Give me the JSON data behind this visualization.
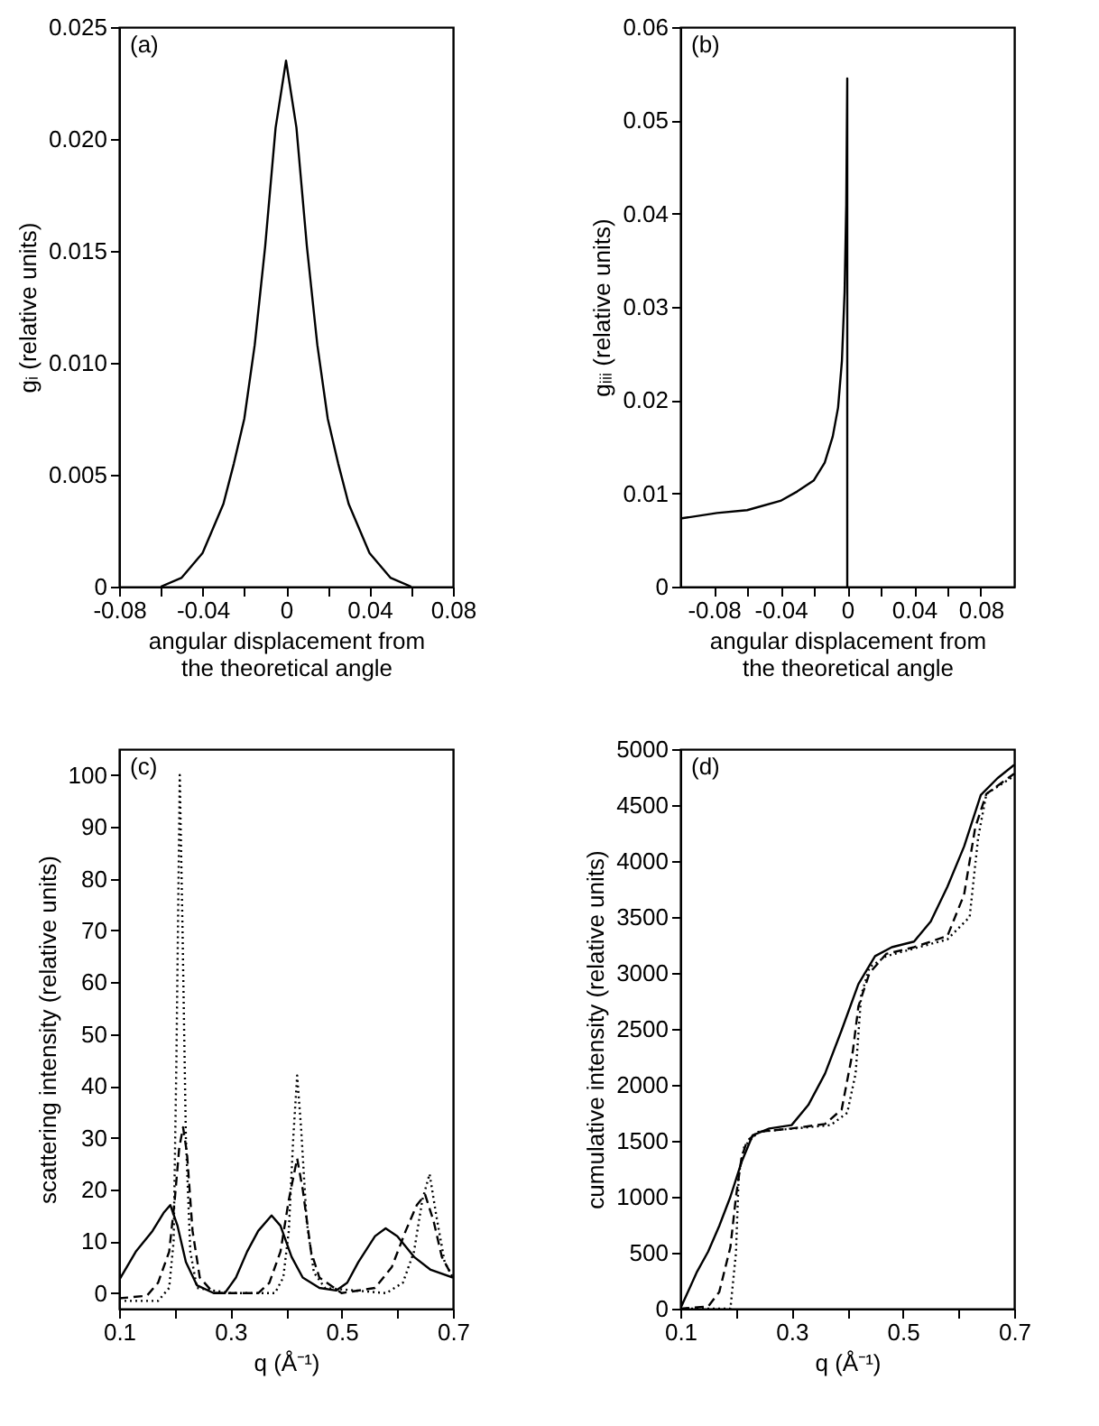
{
  "chart_data": [
    {
      "type": "line",
      "annotations": [
        "(a)"
      ],
      "xlabel": "angular displacement from\nthe theoretical angle",
      "ylabel": "gᵢ (relative units)",
      "xlim": [
        -0.08,
        0.08
      ],
      "ylim": [
        0,
        0.025
      ],
      "xticks": [
        -0.08,
        {
          "value": -0.06,
          "label": null
        },
        -0.04,
        {
          "value": -0.02,
          "label": null
        },
        0,
        {
          "value": 0.02,
          "label": null
        },
        0.04,
        {
          "value": 0.06,
          "label": null
        },
        0.08
      ],
      "yticks": [
        0,
        0.005,
        {
          "value": 0.01,
          "label": "0.010"
        },
        0.015,
        {
          "value": 0.02,
          "label": "0.020"
        },
        0.025
      ],
      "x": [
        -0.06,
        -0.05,
        -0.04,
        -0.03,
        -0.025,
        -0.02,
        -0.015,
        -0.01,
        -0.005,
        0,
        0.005,
        0.01,
        0.015,
        0.02,
        0.025,
        0.03,
        0.04,
        0.05,
        0.06
      ],
      "series": [
        {
          "color": "#000000",
          "line_style": "solid",
          "values": [
            0,
            0.0004,
            0.0015,
            0.0037,
            0.0055,
            0.0075,
            0.0108,
            0.0152,
            0.0205,
            0.0235,
            0.0205,
            0.0152,
            0.0108,
            0.0075,
            0.0055,
            0.0037,
            0.0015,
            0.0004,
            0
          ]
        }
      ]
    },
    {
      "type": "line",
      "annotations": [
        "(b)"
      ],
      "xlabel": "angular displacement from\nthe theoretical angle",
      "ylabel": "gᵢᵢᵢ (relative units)",
      "xlim": [
        -0.1,
        0.1
      ],
      "ylim": [
        0,
        0.06
      ],
      "xticks": [
        -0.08,
        {
          "value": -0.06,
          "label": null
        },
        -0.04,
        {
          "value": -0.02,
          "label": null
        },
        0,
        {
          "value": 0.02,
          "label": null
        },
        0.04,
        {
          "value": 0.06,
          "label": null
        },
        0.08
      ],
      "yticks": [
        0,
        0.01,
        0.02,
        0.03,
        0.04,
        0.05,
        0.06
      ],
      "x": [
        -0.1,
        -0.1,
        -0.078,
        -0.06,
        -0.04,
        -0.03,
        -0.02,
        -0.0135,
        -0.0087,
        -0.0055,
        -0.0032,
        -0.0016,
        -0.0006,
        0,
        0
      ],
      "series": [
        {
          "color": "#000000",
          "line_style": "solid",
          "values": [
            0,
            0.0073,
            0.0079,
            0.0082,
            0.0092,
            0.0102,
            0.0114,
            0.0133,
            0.0161,
            0.0192,
            0.0242,
            0.0316,
            0.0409,
            0.0545,
            0
          ]
        }
      ]
    },
    {
      "type": "line",
      "annotations": [
        "(c)"
      ],
      "xlabel": "q (Å⁻¹)",
      "ylabel": "scattering intensity (relative units)",
      "xlim": [
        0.1,
        0.7
      ],
      "ylim": [
        -3,
        105
      ],
      "xticks": [
        0.1,
        {
          "value": 0.2,
          "label": null
        },
        0.3,
        {
          "value": 0.4,
          "label": null
        },
        0.5,
        {
          "value": 0.6,
          "label": null
        },
        0.7
      ],
      "yticks": [
        0,
        10,
        20,
        30,
        40,
        50,
        60,
        70,
        80,
        90,
        100
      ],
      "series": [
        {
          "color": "#000000",
          "line_style": "solid",
          "x": [
            0.1,
            0.13,
            0.16,
            0.18,
            0.192,
            0.205,
            0.22,
            0.24,
            0.27,
            0.29,
            0.31,
            0.33,
            0.35,
            0.374,
            0.39,
            0.41,
            0.43,
            0.46,
            0.49,
            0.51,
            0.53,
            0.56,
            0.579,
            0.6,
            0.63,
            0.66,
            0.7
          ],
          "values": [
            2.5,
            8,
            12,
            15.5,
            17,
            13,
            6,
            1.5,
            0,
            0,
            3,
            8,
            12,
            15,
            13,
            7,
            3,
            1,
            0.5,
            2,
            6,
            11,
            12.5,
            11,
            7,
            4.5,
            3
          ]
        },
        {
          "color": "#000000",
          "line_style": "dashed",
          "x": [
            0.1,
            0.15,
            0.17,
            0.19,
            0.2,
            0.208,
            0.215,
            0.222,
            0.232,
            0.245,
            0.27,
            0.35,
            0.37,
            0.39,
            0.405,
            0.42,
            0.43,
            0.445,
            0.46,
            0.5,
            0.56,
            0.59,
            0.615,
            0.635,
            0.65,
            0.665,
            0.68,
            0.7
          ],
          "values": [
            -1,
            -0.5,
            2,
            8,
            18,
            28,
            32,
            27,
            12,
            3,
            0,
            0,
            2,
            8,
            18,
            26,
            20,
            8,
            3,
            0,
            1,
            5,
            12,
            17,
            19,
            14,
            7,
            3
          ]
        },
        {
          "color": "#000000",
          "line_style": "dotted",
          "x": [
            0.1,
            0.17,
            0.19,
            0.198,
            0.203,
            0.209,
            0.214,
            0.22,
            0.228,
            0.24,
            0.3,
            0.38,
            0.395,
            0.405,
            0.413,
            0.42,
            0.427,
            0.437,
            0.45,
            0.47,
            0.58,
            0.61,
            0.63,
            0.645,
            0.658,
            0.67,
            0.685,
            0.7
          ],
          "values": [
            -1.5,
            -1.5,
            1,
            10,
            45,
            100,
            70,
            30,
            8,
            1,
            0,
            0,
            3,
            12,
            30,
            42,
            32,
            14,
            4,
            1,
            0,
            2,
            8,
            18,
            23,
            15,
            6,
            3
          ]
        }
      ]
    },
    {
      "type": "line",
      "annotations": [
        "(d)"
      ],
      "xlabel": "q (Å⁻¹)",
      "ylabel": "cumulative intensity (relative units)",
      "xlim": [
        0.1,
        0.7
      ],
      "ylim": [
        0,
        5000
      ],
      "xticks": [
        0.1,
        {
          "value": 0.2,
          "label": null
        },
        0.3,
        {
          "value": 0.4,
          "label": null
        },
        0.5,
        {
          "value": 0.6,
          "label": null
        },
        0.7
      ],
      "yticks": [
        0,
        500,
        1000,
        1500,
        2000,
        2500,
        3000,
        3500,
        4000,
        4500,
        5000
      ],
      "series": [
        {
          "color": "#000000",
          "line_style": "solid",
          "x": [
            0.1,
            0.13,
            0.15,
            0.17,
            0.19,
            0.21,
            0.23,
            0.26,
            0.3,
            0.33,
            0.36,
            0.39,
            0.42,
            0.45,
            0.48,
            0.52,
            0.55,
            0.58,
            0.61,
            0.64,
            0.67,
            0.7
          ],
          "values": [
            0,
            330,
            510,
            740,
            1000,
            1310,
            1550,
            1610,
            1640,
            1820,
            2100,
            2490,
            2900,
            3150,
            3230,
            3280,
            3460,
            3770,
            4130,
            4590,
            4740,
            4860
          ]
        },
        {
          "color": "#000000",
          "line_style": "dashed",
          "x": [
            0.1,
            0.15,
            0.17,
            0.19,
            0.2,
            0.21,
            0.22,
            0.24,
            0.3,
            0.36,
            0.39,
            0.41,
            0.42,
            0.44,
            0.47,
            0.52,
            0.58,
            0.61,
            0.63,
            0.65,
            0.7
          ],
          "values": [
            0,
            20,
            150,
            550,
            1000,
            1350,
            1500,
            1580,
            1610,
            1650,
            1780,
            2300,
            2700,
            3000,
            3170,
            3230,
            3330,
            3700,
            4300,
            4600,
            4780
          ]
        },
        {
          "color": "#000000",
          "line_style": "dotted",
          "x": [
            0.1,
            0.19,
            0.2,
            0.205,
            0.215,
            0.24,
            0.37,
            0.4,
            0.415,
            0.425,
            0.44,
            0.47,
            0.58,
            0.62,
            0.635,
            0.65,
            0.7
          ],
          "values": [
            0,
            0,
            500,
            1200,
            1450,
            1580,
            1640,
            1750,
            2100,
            2800,
            3050,
            3150,
            3300,
            3500,
            4200,
            4600,
            4760
          ]
        }
      ]
    }
  ]
}
